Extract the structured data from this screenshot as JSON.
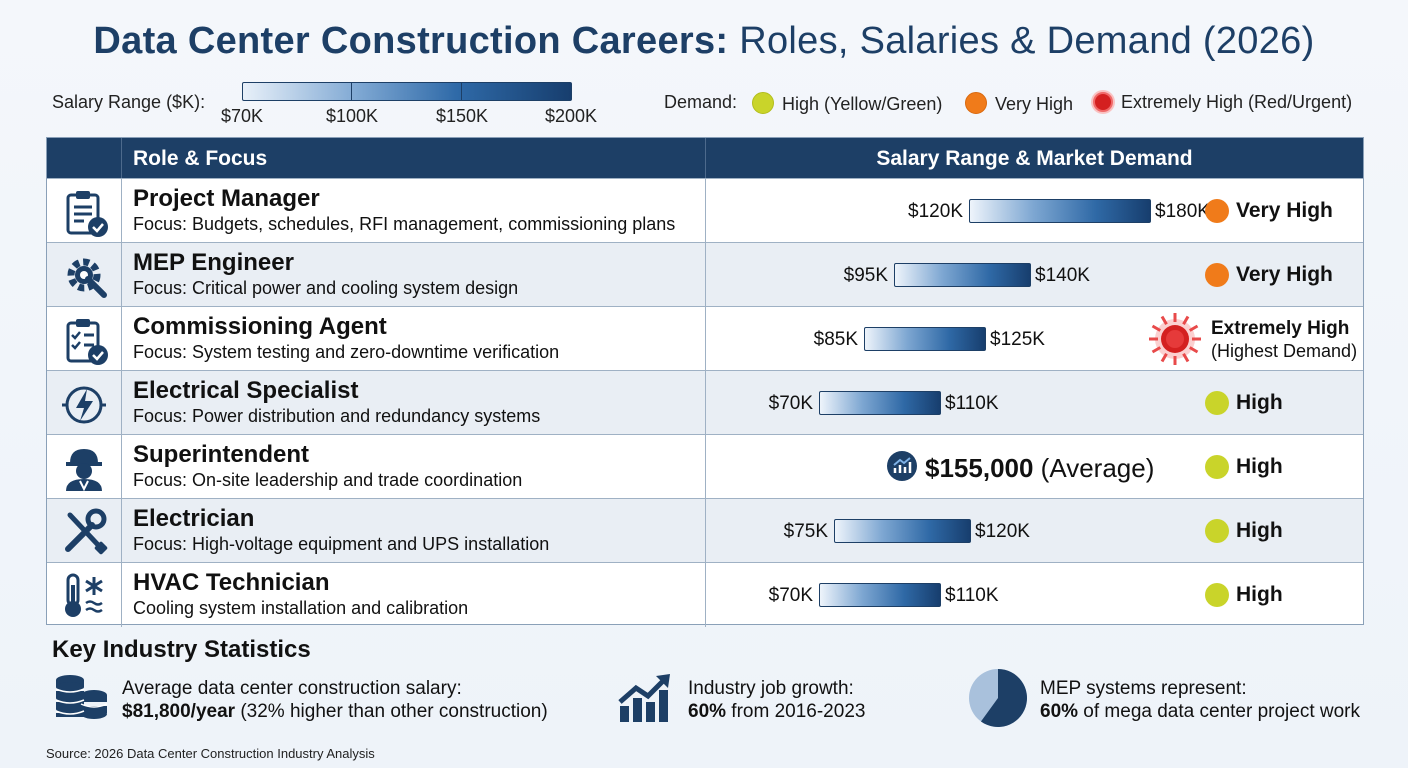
{
  "title_bold": "Data Center Construction Careers:",
  "title_rest": " Roles, Salaries & Demand (2026)",
  "legend": {
    "salary_label": "Salary Range ($K):",
    "salary_ticks": [
      "$70K",
      "$100K",
      "$150K",
      "$200K"
    ],
    "demand_label": "Demand:",
    "demand_items": [
      "High (Yellow/Green)",
      "Very High",
      "Extremely High (Red/Urgent)"
    ]
  },
  "table": {
    "col1_header": "Role & Focus",
    "col2_header": "Salary Range & Market Demand"
  },
  "colors": {
    "navy": "#1d3f66",
    "yellow": "#c9d42a",
    "orange": "#f07b1a",
    "red": "#d42020"
  },
  "chart_data": {
    "type": "bar",
    "title": "Data Center Construction Careers: Roles, Salaries & Demand (2026)",
    "unit": "$K",
    "rows": [
      {
        "role": "Project Manager",
        "focus": "Focus: Budgets, schedules, RFI management, commissioning plans",
        "min": 120,
        "max": 180,
        "min_label": "$120K",
        "max_label": "$180K",
        "demand": "Very High",
        "level": "very-high",
        "icon": "clipboard-check-icon"
      },
      {
        "role": "MEP Engineer",
        "focus": "Focus: Critical power and cooling system design",
        "min": 95,
        "max": 140,
        "min_label": "$95K",
        "max_label": "$140K",
        "demand": "Very High",
        "level": "very-high",
        "icon": "gear-wrench-icon"
      },
      {
        "role": "Commissioning Agent",
        "focus": "Focus: System testing and zero-downtime verification",
        "min": 85,
        "max": 125,
        "min_label": "$85K",
        "max_label": "$125K",
        "demand": "Extremely High",
        "demand_sub": "(Highest Demand)",
        "level": "extremely-high",
        "icon": "checklist-icon"
      },
      {
        "role": "Electrical Specialist",
        "focus": "Focus: Power distribution and redundancy systems",
        "min": 70,
        "max": 110,
        "min_label": "$70K",
        "max_label": "$110K",
        "demand": "High",
        "level": "high",
        "icon": "lightning-icon"
      },
      {
        "role": "Superintendent",
        "focus": "Focus: On-site leadership and trade coordination",
        "average": 155000,
        "average_label": "$155,000",
        "average_suffix": "(Average)",
        "demand": "High",
        "level": "high",
        "icon": "worker-helmet-icon"
      },
      {
        "role": "Electrician",
        "focus": "Focus: High-voltage equipment and UPS installation",
        "min": 75,
        "max": 120,
        "min_label": "$75K",
        "max_label": "$120K",
        "demand": "High",
        "level": "high",
        "icon": "wrench-screwdriver-icon"
      },
      {
        "role": "HVAC Technician",
        "focus": "Cooling system installation and calibration",
        "min": 70,
        "max": 110,
        "min_label": "$70K",
        "max_label": "$110K",
        "demand": "High",
        "level": "high",
        "icon": "thermometer-snowflake-icon"
      }
    ]
  },
  "stats": {
    "title": "Key Industry Statistics",
    "items": [
      {
        "line1": "Average data center construction salary:",
        "bold": "$81,800/year",
        "rest": " (32% higher than other construction)",
        "icon": "coin-stack-icon"
      },
      {
        "line1": "Industry job growth:",
        "bold": "60%",
        "rest": " from 2016-2023",
        "icon": "growth-chart-icon"
      },
      {
        "line1": "MEP systems represent:",
        "bold": "60%",
        "rest": " of mega data center project work",
        "icon": "pie-chart-icon",
        "share": 0.6
      }
    ]
  },
  "source": "Source: 2026 Data Center Construction Industry Analysis"
}
